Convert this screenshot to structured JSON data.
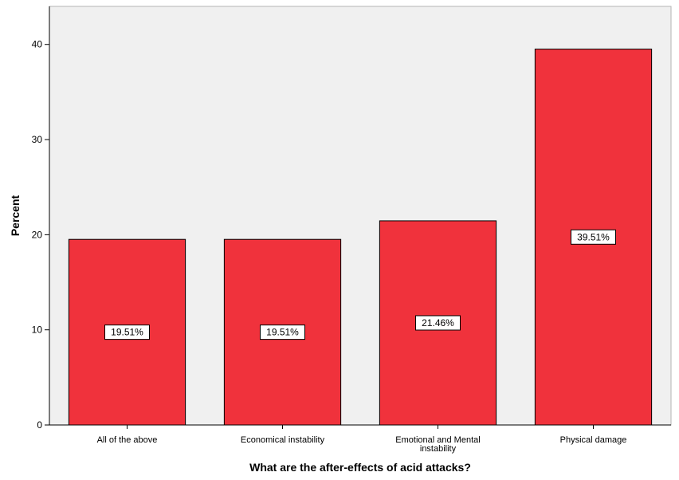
{
  "chart_data": {
    "type": "bar",
    "title": "",
    "xlabel": "What are the after-effects of acid attacks?",
    "ylabel": "Percent",
    "categories": [
      [
        "All of the above"
      ],
      [
        "Economical instability"
      ],
      [
        "Emotional and Mental",
        "instability"
      ],
      [
        "Physical damage"
      ]
    ],
    "values": [
      19.51,
      19.51,
      21.46,
      39.51
    ],
    "data_labels": [
      "19.51%",
      "19.51%",
      "21.46%",
      "39.51%"
    ],
    "ylim": [
      0,
      44
    ],
    "yticks": [
      0,
      10,
      20,
      30,
      40
    ],
    "grid": false,
    "legend": "none",
    "colors": {
      "bar_fill": "#f0323c",
      "bar_stroke": "#000000",
      "plot_background": "#f0f0f0",
      "frame": "#b4b4b4"
    }
  }
}
